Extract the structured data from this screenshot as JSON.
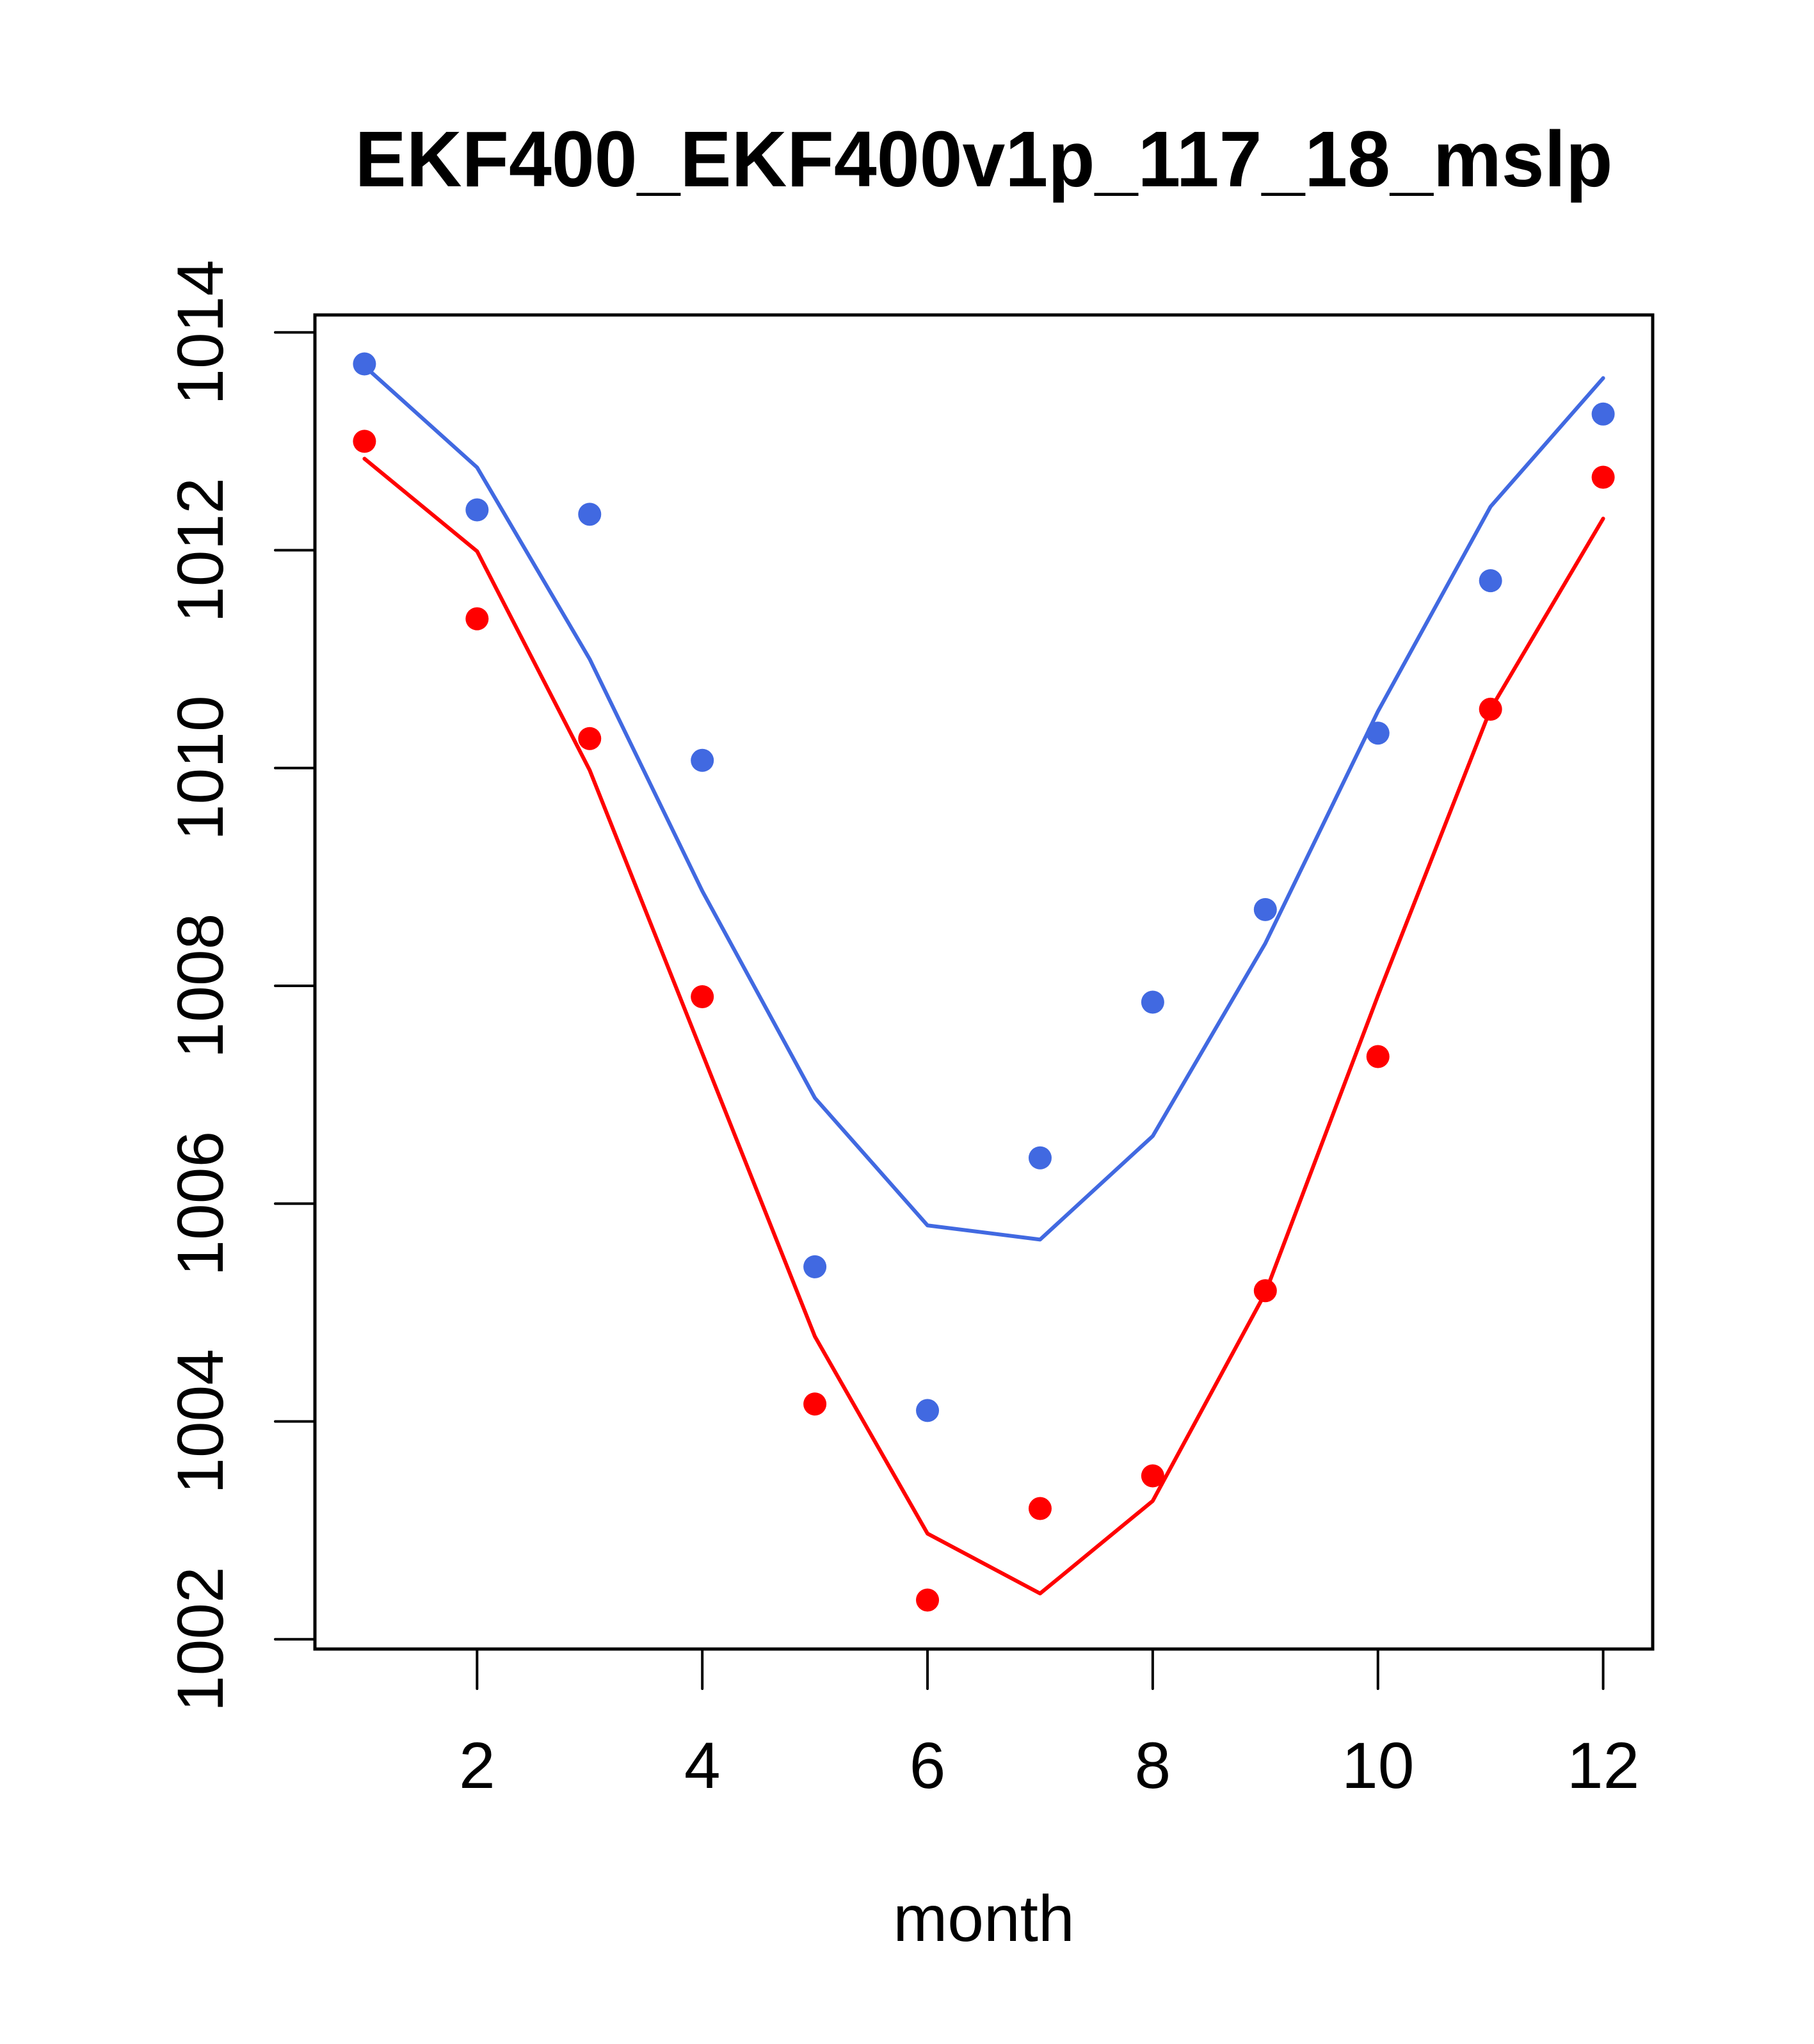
{
  "chart_data": {
    "type": "line",
    "title": "EKF400_EKF400v1p_117_18_mslp",
    "xlabel": "month",
    "ylabel": "",
    "xlim": [
      0.56,
      12.44
    ],
    "ylim": [
      1001.91,
      1014.16
    ],
    "grid": false,
    "legend": "none",
    "x": [
      1,
      2,
      3,
      4,
      5,
      6,
      7,
      8,
      9,
      10,
      11,
      12
    ],
    "x_ticks": [
      2,
      4,
      6,
      8,
      10,
      12
    ],
    "x_tick_labels": [
      "2",
      "4",
      "6",
      "8",
      "10",
      "12"
    ],
    "y_ticks": [
      1002,
      1004,
      1006,
      1008,
      1010,
      1012,
      1014
    ],
    "y_tick_labels": [
      "1002",
      "1004",
      "1006",
      "1008",
      "1010",
      "1012",
      "1014"
    ],
    "series": [
      {
        "type": "line",
        "color": "#4169E1",
        "values": [
          1013.69,
          1012.76,
          1011.0,
          1008.87,
          1006.97,
          1005.8,
          1005.67,
          1006.62,
          1008.39,
          1010.52,
          1012.4,
          1013.58
        ]
      },
      {
        "type": "line",
        "color": "#FF0000",
        "values": [
          1012.84,
          1011.99,
          1009.98,
          1007.38,
          1004.78,
          1002.97,
          1002.42,
          1003.27,
          1005.18,
          1007.91,
          1010.54,
          1012.29
        ]
      },
      {
        "type": "scatter",
        "color": "#4169E1",
        "values": [
          1013.71,
          1012.37,
          1012.33,
          1010.07,
          1005.42,
          1004.1,
          1006.42,
          1007.85,
          1008.7,
          1010.32,
          1011.72,
          1013.25
        ]
      },
      {
        "type": "scatter",
        "color": "#FF0000",
        "values": [
          1013.0,
          1011.37,
          1010.27,
          1007.9,
          1004.16,
          1002.36,
          1003.2,
          1003.5,
          1005.2,
          1007.35,
          1010.54,
          1012.67
        ]
      }
    ]
  }
}
